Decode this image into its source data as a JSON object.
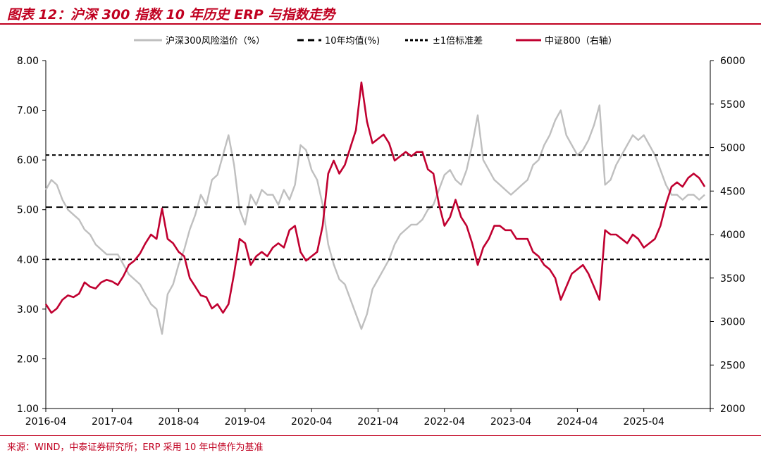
{
  "header": {
    "title": "图表 12：沪深 300 指数 10 年历史 ERP 与指数走势"
  },
  "footer": {
    "source": "来源：WIND，中泰证券研究所；ERP 采用 10 年中债作为基准"
  },
  "colors": {
    "accent": "#c00020",
    "erp": "#bfbfbf",
    "index": "#c00030",
    "reference": "#000000"
  },
  "chart_data": {
    "type": "line",
    "title": "",
    "xlabel": "",
    "ylabel": "",
    "legend_position": "top",
    "grid": false,
    "x_ticks": [
      "2016-04",
      "2017-04",
      "2018-04",
      "2019-04",
      "2020-04",
      "2021-04",
      "2022-04",
      "2023-04",
      "2024-04",
      "2025-04"
    ],
    "x_range": [
      "2016-04",
      "2026-04"
    ],
    "y_left": {
      "ticks": [
        "8.00",
        "7.00",
        "6.00",
        "5.00",
        "4.00",
        "3.00",
        "2.00",
        "1.00"
      ],
      "range": [
        1,
        8
      ]
    },
    "y_right": {
      "ticks": [
        "6000",
        "5500",
        "5000",
        "4500",
        "4000",
        "3500",
        "3000",
        "2500",
        "2000"
      ],
      "range": [
        2000,
        6000
      ]
    },
    "series": [
      {
        "name": "沪深300风险溢价（%）",
        "axis": "left",
        "style": "solid",
        "points": [
          [
            "2016-04",
            5.4
          ],
          [
            "2016-05",
            5.6
          ],
          [
            "2016-06",
            5.5
          ],
          [
            "2016-07",
            5.2
          ],
          [
            "2016-08",
            5.0
          ],
          [
            "2016-09",
            4.9
          ],
          [
            "2016-10",
            4.8
          ],
          [
            "2016-11",
            4.6
          ],
          [
            "2016-12",
            4.5
          ],
          [
            "2017-01",
            4.3
          ],
          [
            "2017-02",
            4.2
          ],
          [
            "2017-03",
            4.1
          ],
          [
            "2017-04",
            4.1
          ],
          [
            "2017-05",
            4.1
          ],
          [
            "2017-06",
            3.9
          ],
          [
            "2017-07",
            3.7
          ],
          [
            "2017-08",
            3.6
          ],
          [
            "2017-09",
            3.5
          ],
          [
            "2017-10",
            3.3
          ],
          [
            "2017-11",
            3.1
          ],
          [
            "2017-12",
            3.0
          ],
          [
            "2018-01",
            2.5
          ],
          [
            "2018-02",
            3.3
          ],
          [
            "2018-03",
            3.5
          ],
          [
            "2018-04",
            3.9
          ],
          [
            "2018-05",
            4.2
          ],
          [
            "2018-06",
            4.6
          ],
          [
            "2018-07",
            4.9
          ],
          [
            "2018-08",
            5.3
          ],
          [
            "2018-09",
            5.1
          ],
          [
            "2018-10",
            5.6
          ],
          [
            "2018-11",
            5.7
          ],
          [
            "2018-12",
            6.1
          ],
          [
            "2019-01",
            6.5
          ],
          [
            "2019-02",
            5.9
          ],
          [
            "2019-03",
            5.0
          ],
          [
            "2019-04",
            4.7
          ],
          [
            "2019-05",
            5.3
          ],
          [
            "2019-06",
            5.1
          ],
          [
            "2019-07",
            5.4
          ],
          [
            "2019-08",
            5.3
          ],
          [
            "2019-09",
            5.3
          ],
          [
            "2019-10",
            5.1
          ],
          [
            "2019-11",
            5.4
          ],
          [
            "2019-12",
            5.2
          ],
          [
            "2020-01",
            5.5
          ],
          [
            "2020-02",
            6.3
          ],
          [
            "2020-03",
            6.2
          ],
          [
            "2020-04",
            5.8
          ],
          [
            "2020-05",
            5.6
          ],
          [
            "2020-06",
            5.1
          ],
          [
            "2020-07",
            4.3
          ],
          [
            "2020-08",
            3.9
          ],
          [
            "2020-09",
            3.6
          ],
          [
            "2020-10",
            3.5
          ],
          [
            "2020-11",
            3.2
          ],
          [
            "2020-12",
            2.9
          ],
          [
            "2021-01",
            2.6
          ],
          [
            "2021-02",
            2.9
          ],
          [
            "2021-03",
            3.4
          ],
          [
            "2021-04",
            3.6
          ],
          [
            "2021-05",
            3.8
          ],
          [
            "2021-06",
            4.0
          ],
          [
            "2021-07",
            4.3
          ],
          [
            "2021-08",
            4.5
          ],
          [
            "2021-09",
            4.6
          ],
          [
            "2021-10",
            4.7
          ],
          [
            "2021-11",
            4.7
          ],
          [
            "2021-12",
            4.8
          ],
          [
            "2022-01",
            5.0
          ],
          [
            "2022-02",
            5.1
          ],
          [
            "2022-03",
            5.4
          ],
          [
            "2022-04",
            5.7
          ],
          [
            "2022-05",
            5.8
          ],
          [
            "2022-06",
            5.6
          ],
          [
            "2022-07",
            5.5
          ],
          [
            "2022-08",
            5.8
          ],
          [
            "2022-09",
            6.3
          ],
          [
            "2022-10",
            6.9
          ],
          [
            "2022-11",
            6.0
          ],
          [
            "2022-12",
            5.8
          ],
          [
            "2023-01",
            5.6
          ],
          [
            "2023-02",
            5.5
          ],
          [
            "2023-03",
            5.4
          ],
          [
            "2023-04",
            5.3
          ],
          [
            "2023-05",
            5.4
          ],
          [
            "2023-06",
            5.5
          ],
          [
            "2023-07",
            5.6
          ],
          [
            "2023-08",
            5.9
          ],
          [
            "2023-09",
            6.0
          ],
          [
            "2023-10",
            6.3
          ],
          [
            "2023-11",
            6.5
          ],
          [
            "2023-12",
            6.8
          ],
          [
            "2024-01",
            7.0
          ],
          [
            "2024-02",
            6.5
          ],
          [
            "2024-03",
            6.3
          ],
          [
            "2024-04",
            6.1
          ],
          [
            "2024-05",
            6.2
          ],
          [
            "2024-06",
            6.4
          ],
          [
            "2024-07",
            6.7
          ],
          [
            "2024-08",
            7.1
          ],
          [
            "2024-09",
            5.5
          ],
          [
            "2024-10",
            5.6
          ],
          [
            "2024-11",
            5.9
          ],
          [
            "2024-12",
            6.1
          ],
          [
            "2025-01",
            6.3
          ],
          [
            "2025-02",
            6.5
          ],
          [
            "2025-03",
            6.4
          ],
          [
            "2025-04",
            6.5
          ],
          [
            "2025-05",
            6.3
          ],
          [
            "2025-06",
            6.1
          ],
          [
            "2025-07",
            5.8
          ],
          [
            "2025-08",
            5.5
          ],
          [
            "2025-09",
            5.3
          ],
          [
            "2025-10",
            5.3
          ],
          [
            "2025-11",
            5.2
          ],
          [
            "2025-12",
            5.3
          ],
          [
            "2026-01",
            5.3
          ],
          [
            "2026-02",
            5.2
          ],
          [
            "2026-03",
            5.3
          ]
        ]
      },
      {
        "name": "10年均值(%)",
        "axis": "left",
        "style": "dashed",
        "value": 5.05
      },
      {
        "name": "±1倍标准差",
        "axis": "left",
        "style": "dashed",
        "values": [
          6.1,
          4.0
        ]
      },
      {
        "name": "中证800（右轴）",
        "axis": "right",
        "style": "solid",
        "points": [
          [
            "2016-04",
            3200
          ],
          [
            "2016-05",
            3100
          ],
          [
            "2016-06",
            3150
          ],
          [
            "2016-07",
            3250
          ],
          [
            "2016-08",
            3300
          ],
          [
            "2016-09",
            3280
          ],
          [
            "2016-10",
            3320
          ],
          [
            "2016-11",
            3450
          ],
          [
            "2016-12",
            3400
          ],
          [
            "2017-01",
            3380
          ],
          [
            "2017-02",
            3450
          ],
          [
            "2017-03",
            3480
          ],
          [
            "2017-04",
            3460
          ],
          [
            "2017-05",
            3420
          ],
          [
            "2017-06",
            3520
          ],
          [
            "2017-07",
            3650
          ],
          [
            "2017-08",
            3700
          ],
          [
            "2017-09",
            3780
          ],
          [
            "2017-10",
            3900
          ],
          [
            "2017-11",
            4000
          ],
          [
            "2017-12",
            3950
          ],
          [
            "2018-01",
            4300
          ],
          [
            "2018-02",
            3950
          ],
          [
            "2018-03",
            3900
          ],
          [
            "2018-04",
            3800
          ],
          [
            "2018-05",
            3750
          ],
          [
            "2018-06",
            3500
          ],
          [
            "2018-07",
            3400
          ],
          [
            "2018-08",
            3300
          ],
          [
            "2018-09",
            3280
          ],
          [
            "2018-10",
            3150
          ],
          [
            "2018-11",
            3200
          ],
          [
            "2018-12",
            3100
          ],
          [
            "2019-01",
            3200
          ],
          [
            "2019-02",
            3550
          ],
          [
            "2019-03",
            3950
          ],
          [
            "2019-04",
            3900
          ],
          [
            "2019-05",
            3650
          ],
          [
            "2019-06",
            3750
          ],
          [
            "2019-07",
            3800
          ],
          [
            "2019-08",
            3750
          ],
          [
            "2019-09",
            3850
          ],
          [
            "2019-10",
            3900
          ],
          [
            "2019-11",
            3850
          ],
          [
            "2019-12",
            4050
          ],
          [
            "2020-01",
            4100
          ],
          [
            "2020-02",
            3800
          ],
          [
            "2020-03",
            3700
          ],
          [
            "2020-04",
            3750
          ],
          [
            "2020-05",
            3800
          ],
          [
            "2020-06",
            4100
          ],
          [
            "2020-07",
            4700
          ],
          [
            "2020-08",
            4850
          ],
          [
            "2020-09",
            4700
          ],
          [
            "2020-10",
            4800
          ],
          [
            "2020-11",
            5000
          ],
          [
            "2020-12",
            5200
          ],
          [
            "2021-01",
            5750
          ],
          [
            "2021-02",
            5300
          ],
          [
            "2021-03",
            5050
          ],
          [
            "2021-04",
            5100
          ],
          [
            "2021-05",
            5150
          ],
          [
            "2021-06",
            5050
          ],
          [
            "2021-07",
            4850
          ],
          [
            "2021-08",
            4900
          ],
          [
            "2021-09",
            4950
          ],
          [
            "2021-10",
            4900
          ],
          [
            "2021-11",
            4950
          ],
          [
            "2021-12",
            4950
          ],
          [
            "2022-01",
            4750
          ],
          [
            "2022-02",
            4700
          ],
          [
            "2022-03",
            4350
          ],
          [
            "2022-04",
            4100
          ],
          [
            "2022-05",
            4200
          ],
          [
            "2022-06",
            4400
          ],
          [
            "2022-07",
            4200
          ],
          [
            "2022-08",
            4100
          ],
          [
            "2022-09",
            3900
          ],
          [
            "2022-10",
            3650
          ],
          [
            "2022-11",
            3850
          ],
          [
            "2022-12",
            3950
          ],
          [
            "2023-01",
            4100
          ],
          [
            "2023-02",
            4100
          ],
          [
            "2023-03",
            4050
          ],
          [
            "2023-04",
            4050
          ],
          [
            "2023-05",
            3950
          ],
          [
            "2023-06",
            3950
          ],
          [
            "2023-07",
            3950
          ],
          [
            "2023-08",
            3800
          ],
          [
            "2023-09",
            3750
          ],
          [
            "2023-10",
            3650
          ],
          [
            "2023-11",
            3600
          ],
          [
            "2023-12",
            3500
          ],
          [
            "2024-01",
            3250
          ],
          [
            "2024-02",
            3400
          ],
          [
            "2024-03",
            3550
          ],
          [
            "2024-04",
            3600
          ],
          [
            "2024-05",
            3650
          ],
          [
            "2024-06",
            3550
          ],
          [
            "2024-07",
            3400
          ],
          [
            "2024-08",
            3250
          ],
          [
            "2024-09",
            4050
          ],
          [
            "2024-10",
            4000
          ],
          [
            "2024-11",
            4000
          ],
          [
            "2024-12",
            3950
          ],
          [
            "2025-01",
            3900
          ],
          [
            "2025-02",
            4000
          ],
          [
            "2025-03",
            3950
          ],
          [
            "2025-04",
            3850
          ],
          [
            "2025-05",
            3900
          ],
          [
            "2025-06",
            3950
          ],
          [
            "2025-07",
            4100
          ],
          [
            "2025-08",
            4350
          ],
          [
            "2025-09",
            4550
          ],
          [
            "2025-10",
            4600
          ],
          [
            "2025-11",
            4550
          ],
          [
            "2025-12",
            4650
          ],
          [
            "2026-01",
            4700
          ],
          [
            "2026-02",
            4650
          ],
          [
            "2026-03",
            4550
          ]
        ]
      }
    ]
  }
}
